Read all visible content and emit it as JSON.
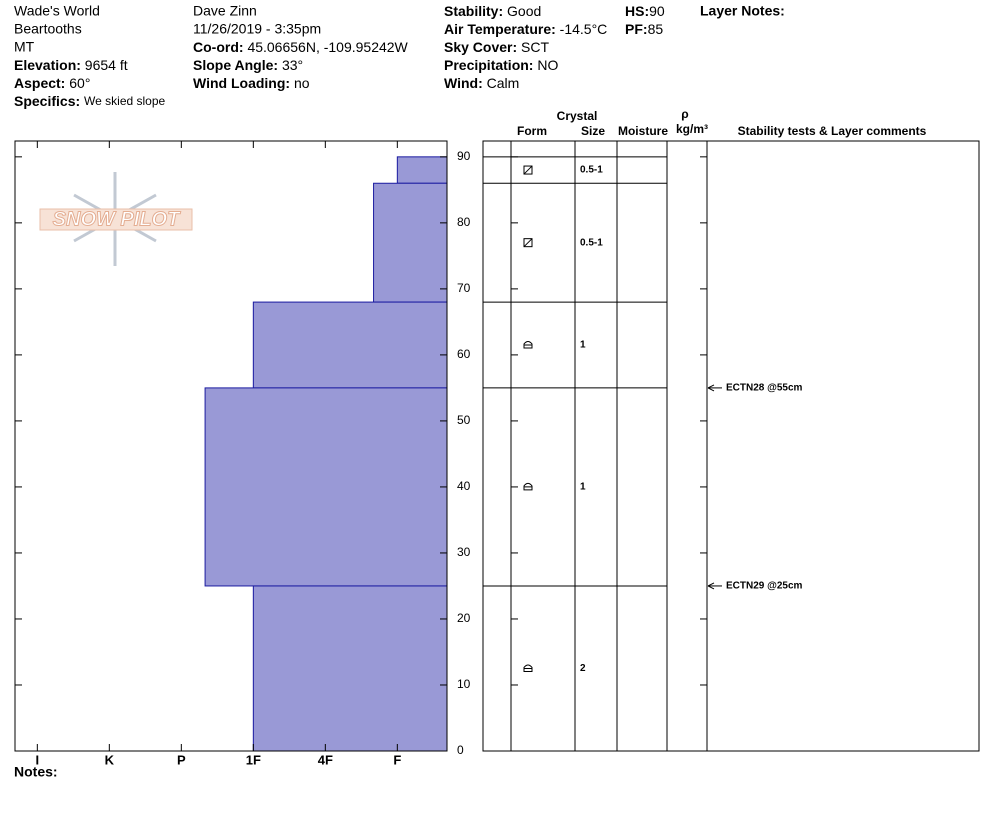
{
  "header": {
    "location": "Wade's World",
    "range": "Beartooths",
    "state": "MT",
    "elevation_label": "Elevation:",
    "elevation": "9654 ft",
    "aspect_label": "Aspect:",
    "aspect": "60°",
    "specifics_label": "Specifics:",
    "specifics": "We skied slope",
    "observer": "Dave Zinn",
    "datetime": "11/26/2019 - 3:35pm",
    "coord_label": "Co-ord:",
    "coord": "45.06656N, -109.95242W",
    "slope_label": "Slope Angle:",
    "slope": "33°",
    "wind_loading_label": "Wind Loading:",
    "wind_loading": "no",
    "stability_label": "Stability:",
    "stability": "Good",
    "air_temp_label": "Air Temperature:",
    "air_temp": "-14.5°C",
    "sky_label": "Sky Cover:",
    "sky": "SCT",
    "precip_label": "Precipitation:",
    "precip": "NO",
    "wind_label": "Wind:",
    "wind": "Calm",
    "hs_label": "HS:",
    "hs": "90",
    "pf_label": "PF:",
    "pf": "85",
    "layer_notes": "Layer Notes:",
    "notes": "Notes:",
    "logo": "SNOW PILOT"
  },
  "chart_data": {
    "type": "snow-profile",
    "color": "#9999d6",
    "edge_color": "#1a1aa0",
    "xlim": [
      0.69,
      6.69
    ],
    "xticks": [
      {
        "value": 1,
        "label": "I"
      },
      {
        "value": 2,
        "label": "K"
      },
      {
        "value": 3,
        "label": "P"
      },
      {
        "value": 4,
        "label": "1F"
      },
      {
        "value": 5,
        "label": "4F"
      },
      {
        "value": 6,
        "label": "F"
      }
    ],
    "ylim": [
      0,
      92.4
    ],
    "yticks": [
      0,
      10,
      20,
      30,
      40,
      50,
      60,
      70,
      80,
      90
    ],
    "layers": {
      "top": [
        90,
        86,
        68,
        55,
        25
      ],
      "bottom": [
        86,
        68,
        55,
        25,
        0
      ],
      "hardness": [
        6,
        5.67,
        4,
        3.33,
        4
      ],
      "size": [
        "0.5-1",
        "0.5-1",
        "1",
        "1",
        "2"
      ]
    },
    "tests": [
      {
        "label": "ECTN28 @55cm",
        "depth": 55
      },
      {
        "label": "ECTN29 @25cm",
        "depth": 25
      }
    ],
    "columns": {
      "crystal": "Crystal",
      "form": "Form",
      "size": "Size",
      "moisture": "Moisture",
      "rho": "ρ",
      "density_unit": "kg/m³",
      "comments": "Stability tests & Layer comments"
    }
  }
}
